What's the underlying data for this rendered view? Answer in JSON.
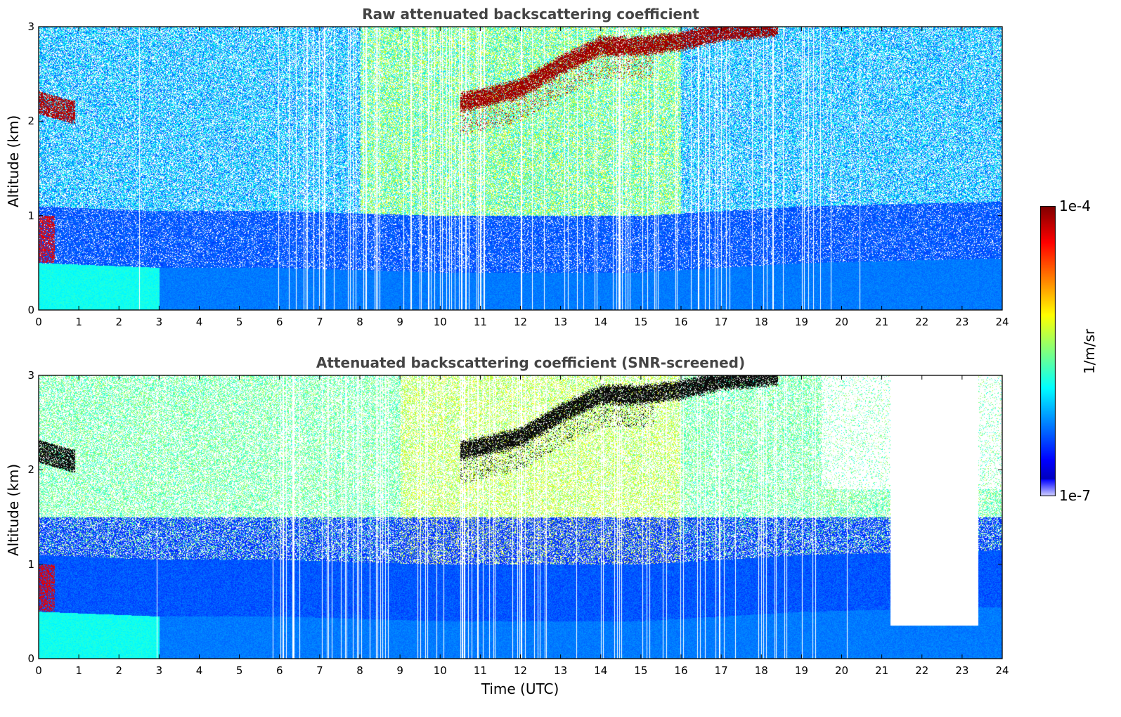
{
  "chart_data": [
    {
      "type": "heatmap",
      "title": "Raw attenuated backscattering coefficient",
      "xlabel": "",
      "ylabel": "Altitude (km)",
      "xlim": [
        0,
        24
      ],
      "ylim": [
        0,
        3
      ],
      "xticks": [
        "0",
        "1",
        "2",
        "3",
        "4",
        "5",
        "6",
        "7",
        "8",
        "9",
        "10",
        "11",
        "12",
        "13",
        "14",
        "15",
        "16",
        "17",
        "18",
        "19",
        "20",
        "21",
        "22",
        "23",
        "24"
      ],
      "yticks": [
        "0",
        "1",
        "2",
        "3"
      ],
      "grid": false,
      "boundary_layer_top_km": [
        [
          0,
          0.5
        ],
        [
          3,
          0.45
        ],
        [
          6,
          0.45
        ],
        [
          10,
          0.4
        ],
        [
          15,
          0.4
        ],
        [
          19,
          0.5
        ],
        [
          24,
          0.55
        ]
      ],
      "cloud_layer_km": [
        [
          10.5,
          2.2
        ],
        [
          12,
          2.35
        ],
        [
          13,
          2.6
        ],
        [
          14,
          2.8
        ],
        [
          15,
          2.8
        ],
        [
          16,
          2.85
        ],
        [
          17,
          2.95
        ],
        [
          18.4,
          3.0
        ]
      ],
      "early_aerosol_layer_km": [
        [
          0,
          2.2
        ],
        [
          0.8,
          2.1
        ]
      ]
    },
    {
      "type": "heatmap",
      "title": "Attenuated backscattering coefficient (SNR-screened)",
      "xlabel": "Time (UTC)",
      "ylabel": "Altitude (km)",
      "xlim": [
        0,
        24
      ],
      "ylim": [
        0,
        3
      ],
      "xticks": [
        "0",
        "1",
        "2",
        "3",
        "4",
        "5",
        "6",
        "7",
        "8",
        "9",
        "10",
        "11",
        "12",
        "13",
        "14",
        "15",
        "16",
        "17",
        "18",
        "19",
        "20",
        "21",
        "22",
        "23",
        "24"
      ],
      "yticks": [
        "0",
        "1",
        "2",
        "3"
      ],
      "grid": false,
      "screened_gap_hours": [
        21.2,
        23.4
      ],
      "screened_gap_floor_km": 0.35
    }
  ],
  "colorbar": {
    "label": "1/m/sr",
    "max_label": "1e-4",
    "min_label": "1e-7",
    "scale": "log",
    "colormap": "jet"
  }
}
